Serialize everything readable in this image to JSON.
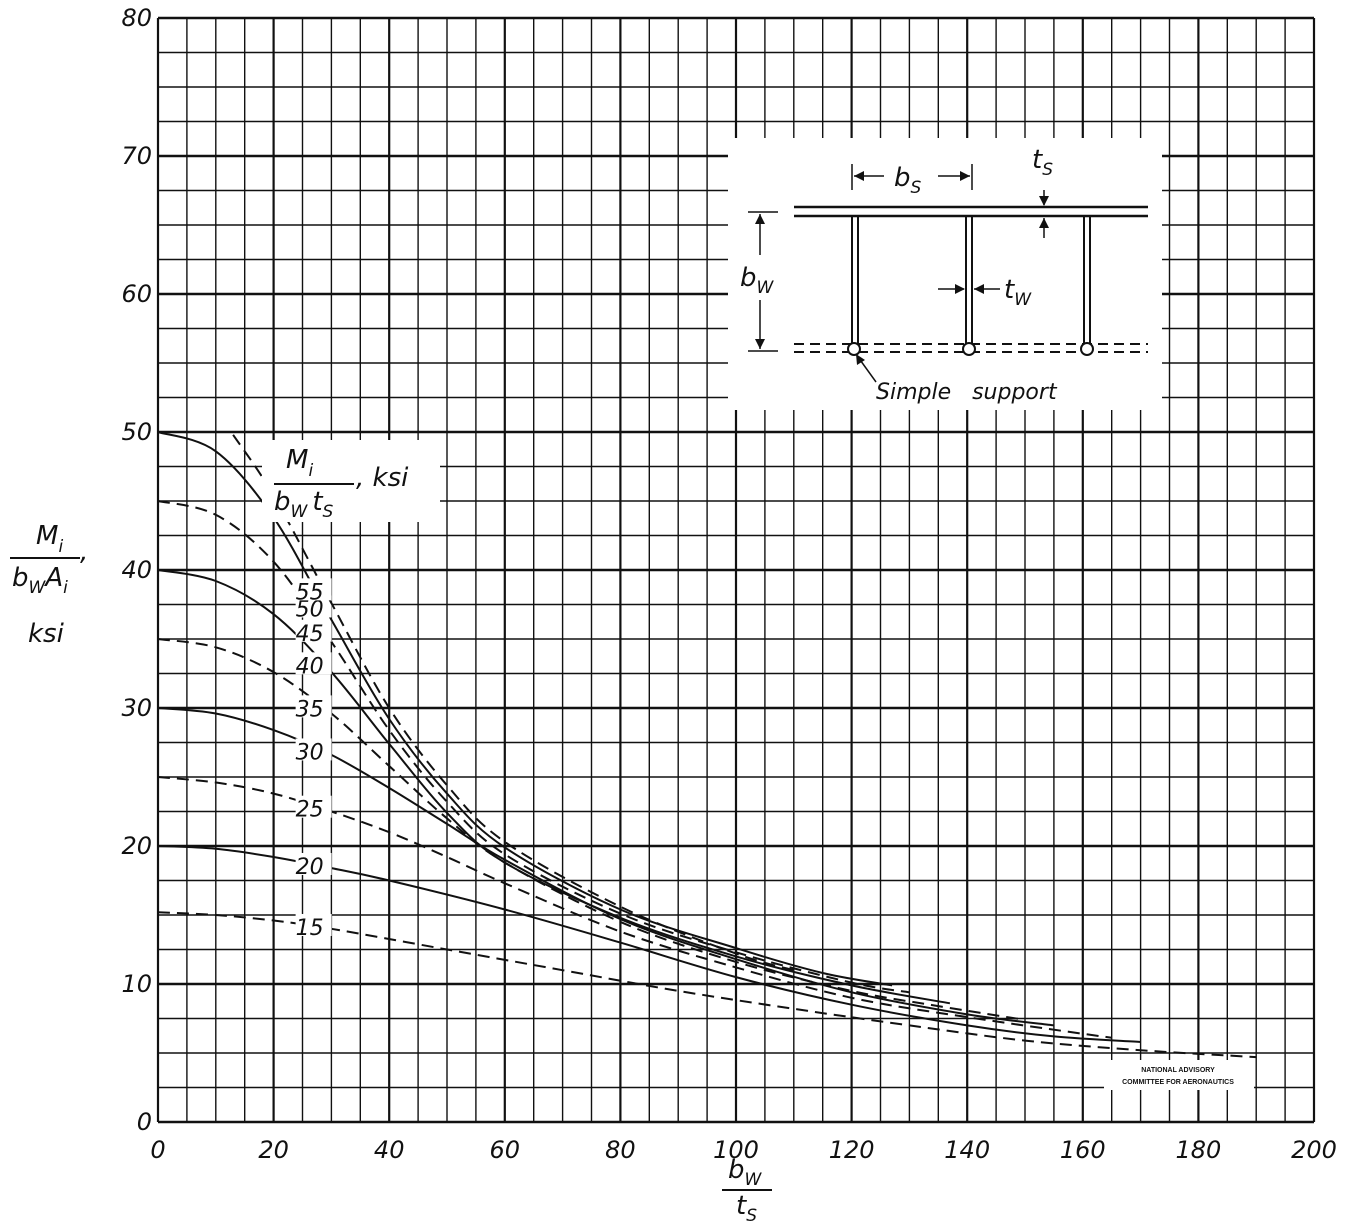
{
  "chart_data": {
    "type": "line",
    "title": "",
    "xlabel": {
      "num": "b",
      "num_sub": "W",
      "den": "t",
      "den_sub": "S"
    },
    "ylabel": {
      "num": "M",
      "num_sub": "i",
      "den1": "b",
      "den1_sub": "W",
      "den2": "A",
      "den2_sub": "i",
      "suffix": ",",
      "unit": "ksi"
    },
    "xlim": [
      0,
      200
    ],
    "ylim": [
      0,
      80
    ],
    "xticks": [
      "0",
      "20",
      "40",
      "60",
      "80",
      "100",
      "120",
      "140",
      "160",
      "180",
      "200"
    ],
    "yticks": [
      "0",
      "10",
      "20",
      "30",
      "40",
      "50",
      "60",
      "70",
      "80"
    ],
    "grid": true,
    "grid_minor_x": 5,
    "grid_minor_y": 2.5,
    "parameter_label": {
      "num": "M",
      "num_sub": "i",
      "den1": "b",
      "den1_sub": "W",
      "den2": "t",
      "den2_sub": "S",
      "unit": ", ksi"
    },
    "series": [
      {
        "name": "15",
        "dashed": true,
        "points": [
          [
            0,
            15.2
          ],
          [
            10,
            15.0
          ],
          [
            20,
            14.6
          ],
          [
            30,
            14.0
          ],
          [
            50,
            12.5
          ],
          [
            70,
            11.0
          ],
          [
            90,
            9.5
          ],
          [
            110,
            8.2
          ],
          [
            130,
            7.0
          ],
          [
            150,
            5.9
          ],
          [
            170,
            5.2
          ],
          [
            190,
            4.7
          ]
        ]
      },
      {
        "name": "20",
        "dashed": false,
        "points": [
          [
            0,
            20.0
          ],
          [
            10,
            19.8
          ],
          [
            20,
            19.2
          ],
          [
            30,
            18.4
          ],
          [
            40,
            17.5
          ],
          [
            60,
            15.4
          ],
          [
            80,
            13.0
          ],
          [
            100,
            10.5
          ],
          [
            120,
            8.5
          ],
          [
            140,
            7.0
          ],
          [
            155,
            6.2
          ],
          [
            170,
            5.8
          ]
        ]
      },
      {
        "name": "25",
        "dashed": true,
        "points": [
          [
            0,
            25.0
          ],
          [
            10,
            24.6
          ],
          [
            20,
            23.8
          ],
          [
            30,
            22.5
          ],
          [
            40,
            21.0
          ],
          [
            50,
            19.2
          ],
          [
            60,
            17.3
          ],
          [
            80,
            13.8
          ],
          [
            100,
            11.2
          ],
          [
            120,
            9.0
          ],
          [
            140,
            7.6
          ],
          [
            165,
            6.1
          ]
        ]
      },
      {
        "name": "30",
        "dashed": false,
        "points": [
          [
            0,
            30.0
          ],
          [
            10,
            29.6
          ],
          [
            20,
            28.4
          ],
          [
            30,
            26.6
          ],
          [
            40,
            24.2
          ],
          [
            50,
            21.6
          ],
          [
            60,
            19.0
          ],
          [
            80,
            14.7
          ],
          [
            100,
            11.8
          ],
          [
            120,
            9.4
          ],
          [
            140,
            7.8
          ],
          [
            155,
            7.0
          ]
        ]
      },
      {
        "name": "35",
        "dashed": true,
        "points": [
          [
            0,
            35.0
          ],
          [
            10,
            34.4
          ],
          [
            20,
            32.6
          ],
          [
            30,
            29.6
          ],
          [
            40,
            25.8
          ],
          [
            50,
            22.0
          ],
          [
            60,
            18.8
          ],
          [
            80,
            14.5
          ],
          [
            100,
            11.6
          ],
          [
            120,
            9.5
          ],
          [
            135,
            8.4
          ],
          [
            150,
            7.4
          ]
        ]
      },
      {
        "name": "40",
        "dashed": false,
        "points": [
          [
            0,
            40.0
          ],
          [
            10,
            39.2
          ],
          [
            20,
            36.8
          ],
          [
            30,
            32.6
          ],
          [
            40,
            27.4
          ],
          [
            50,
            22.4
          ],
          [
            60,
            18.8
          ],
          [
            80,
            14.8
          ],
          [
            100,
            12.0
          ],
          [
            120,
            9.9
          ],
          [
            137,
            8.6
          ]
        ]
      },
      {
        "name": "45",
        "dashed": true,
        "points": [
          [
            0,
            45.0
          ],
          [
            10,
            44.0
          ],
          [
            20,
            40.6
          ],
          [
            30,
            34.8
          ],
          [
            40,
            28.4
          ],
          [
            50,
            23.2
          ],
          [
            60,
            19.4
          ],
          [
            80,
            15.1
          ],
          [
            100,
            12.3
          ],
          [
            120,
            10.1
          ],
          [
            130,
            9.4
          ]
        ]
      },
      {
        "name": "50",
        "dashed": false,
        "points": [
          [
            0,
            50.0
          ],
          [
            10,
            48.6
          ],
          [
            20,
            43.8
          ],
          [
            30,
            36.4
          ],
          [
            40,
            29.2
          ],
          [
            50,
            23.8
          ],
          [
            60,
            19.9
          ],
          [
            80,
            15.4
          ],
          [
            100,
            12.6
          ],
          [
            115,
            10.8
          ],
          [
            127,
            9.9
          ]
        ]
      },
      {
        "name": "55",
        "dashed": true,
        "points": [
          [
            13,
            49.8
          ],
          [
            20,
            45.4
          ],
          [
            30,
            37.6
          ],
          [
            40,
            30.0
          ],
          [
            50,
            24.4
          ],
          [
            60,
            20.3
          ],
          [
            80,
            15.6
          ],
          [
            100,
            12.2
          ],
          [
            110,
            11.0
          ]
        ]
      }
    ],
    "inset": {
      "labels": {
        "bs": "b",
        "bs_sub": "S",
        "ts": "t",
        "ts_sub": "S",
        "bw": "b",
        "bw_sub": "W",
        "tw": "t",
        "tw_sub": "W"
      },
      "caption": "Simple   support"
    },
    "credit": [
      "NATIONAL ADVISORY",
      "COMMITTEE FOR AERONAUTICS"
    ]
  }
}
